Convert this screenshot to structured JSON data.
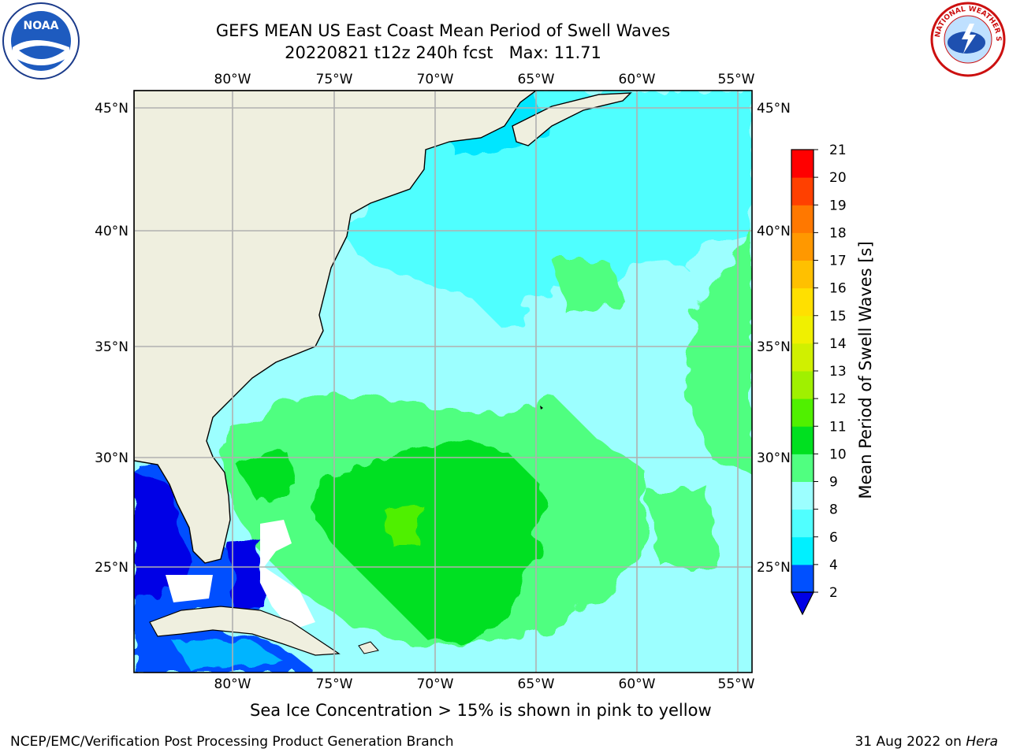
{
  "title": {
    "line1": "GEFS MEAN US East Coast Mean Period of Swell Waves",
    "line2": "20220821 t12z 240h fcst   Max: 11.71"
  },
  "map": {
    "lon_labels": [
      "80°W",
      "75°W",
      "70°W",
      "65°W",
      "60°W",
      "55°W"
    ],
    "lat_labels": [
      "45°N",
      "40°N",
      "35°N",
      "30°N",
      "25°N"
    ],
    "land_color": "#efefdf",
    "grid_color": "#b0b0b0"
  },
  "colorbar": {
    "label": "Mean Period of Swell Waves [s]",
    "ticks": [
      "2",
      "4",
      "6",
      "8",
      "9",
      "10",
      "11",
      "12",
      "13",
      "14",
      "15",
      "16",
      "17",
      "18",
      "19",
      "20",
      "21"
    ],
    "colors": [
      "#0050ff",
      "#00b4ff",
      "#00f0ff",
      "#50ffff",
      "#9cffff",
      "#50ff80",
      "#00e020",
      "#50f000",
      "#a0f000",
      "#d0f000",
      "#f0f000",
      "#ffe000",
      "#ffc000",
      "#ff9800",
      "#ff7800",
      "#ff4000",
      "#ff0000"
    ],
    "under_color": "#0000e6"
  },
  "footer": {
    "note": "Sea Ice Concentration > 15% is shown in pink to yellow",
    "left": "NCEP/EMC/Verification Post Processing Product Generation Branch",
    "right_date": "31 Aug 2022 on",
    "right_host": "Hera"
  },
  "logos": {
    "noaa_text": "NOAA",
    "nws_text": "NATIONAL WEATHER SERVICE"
  }
}
